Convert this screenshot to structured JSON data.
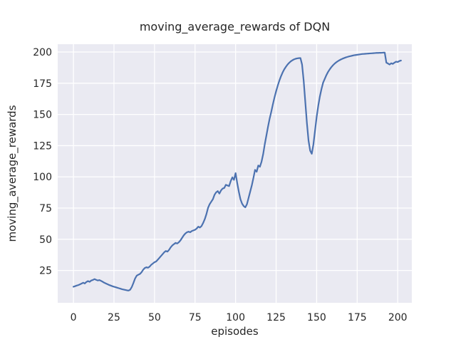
{
  "figure": {
    "title": "moving_average_rewards of DQN",
    "background": "#ffffff"
  },
  "chart_data": {
    "type": "line",
    "title": "moving_average_rewards of DQN",
    "xlabel": "episodes",
    "ylabel": "moving_average_rewards",
    "legend": "none",
    "grid": "on",
    "style": "seaborn-darkgrid",
    "colors": {
      "line": "#4C72B0",
      "plot_background": "#EAEAF2",
      "gridline": "#FFFFFF",
      "text": "#262626"
    },
    "xlim": [
      -9.7,
      208.7
    ],
    "ylim": [
      -0.9,
      206.3
    ],
    "xticks": [
      0,
      25,
      50,
      75,
      100,
      125,
      150,
      175,
      200
    ],
    "yticks": [
      25,
      50,
      75,
      100,
      125,
      150,
      175,
      200
    ],
    "x": [
      0,
      1,
      2,
      3,
      4,
      5,
      6,
      7,
      8,
      9,
      10,
      11,
      12,
      13,
      14,
      15,
      16,
      17,
      18,
      19,
      20,
      21,
      22,
      23,
      24,
      25,
      26,
      27,
      28,
      29,
      30,
      31,
      32,
      33,
      34,
      35,
      36,
      37,
      38,
      39,
      40,
      41,
      42,
      43,
      44,
      45,
      46,
      47,
      48,
      49,
      50,
      51,
      52,
      53,
      54,
      55,
      56,
      57,
      58,
      59,
      60,
      61,
      62,
      63,
      64,
      65,
      66,
      67,
      68,
      69,
      70,
      71,
      72,
      73,
      74,
      75,
      76,
      77,
      78,
      79,
      80,
      81,
      82,
      83,
      84,
      85,
      86,
      87,
      88,
      89,
      90,
      91,
      92,
      93,
      94,
      95,
      96,
      97,
      98,
      99,
      100,
      101,
      102,
      103,
      104,
      105,
      106,
      107,
      108,
      109,
      110,
      111,
      112,
      113,
      114,
      115,
      116,
      117,
      118,
      119,
      120,
      121,
      122,
      123,
      124,
      125,
      126,
      127,
      128,
      129,
      130,
      131,
      132,
      133,
      134,
      135,
      136,
      137,
      138,
      139,
      140,
      141,
      142,
      143,
      144,
      145,
      146,
      147,
      148,
      149,
      150,
      151,
      152,
      153,
      154,
      155,
      156,
      157,
      158,
      159,
      160,
      161,
      162,
      163,
      164,
      165,
      166,
      167,
      168,
      169,
      170,
      171,
      172,
      173,
      174,
      175,
      176,
      177,
      178,
      179,
      180,
      181,
      182,
      183,
      184,
      185,
      186,
      187,
      188,
      189,
      190,
      191,
      192,
      193,
      194,
      195,
      196,
      197,
      198,
      199,
      200,
      201,
      202
    ],
    "y": [
      12.0,
      12.4,
      12.9,
      13.3,
      13.9,
      14.5,
      15.2,
      14.6,
      15.8,
      16.5,
      15.9,
      17.0,
      17.4,
      18.1,
      17.5,
      17.0,
      17.3,
      16.7,
      16.0,
      15.2,
      14.6,
      14.0,
      13.4,
      12.9,
      12.4,
      12.0,
      11.6,
      11.2,
      10.8,
      10.4,
      10.0,
      9.7,
      9.4,
      9.1,
      8.9,
      9.6,
      11.8,
      15.0,
      18.5,
      20.8,
      21.6,
      22.2,
      23.6,
      25.6,
      27.0,
      27.6,
      27.2,
      28.1,
      29.6,
      30.6,
      31.6,
      32.2,
      33.6,
      35.1,
      36.6,
      38.1,
      39.6,
      40.6,
      40.1,
      41.6,
      43.6,
      45.1,
      46.1,
      47.1,
      46.6,
      47.6,
      49.1,
      51.1,
      53.1,
      54.6,
      55.6,
      56.1,
      55.6,
      56.6,
      57.1,
      57.6,
      58.6,
      60.1,
      59.4,
      60.6,
      63.1,
      66.1,
      70.1,
      75.1,
      78.1,
      80.1,
      82.1,
      85.6,
      87.6,
      88.6,
      86.6,
      89.1,
      90.6,
      91.1,
      93.6,
      93.1,
      92.6,
      96.6,
      99.6,
      97.6,
      103.0,
      95.1,
      88.1,
      82.1,
      78.6,
      76.6,
      75.6,
      78.1,
      83.1,
      88.1,
      93.1,
      99.1,
      105.6,
      104.1,
      109.1,
      108.1,
      112.1,
      118.1,
      126.1,
      133.1,
      140.1,
      146.6,
      152.1,
      158.1,
      163.6,
      168.6,
      173.1,
      177.1,
      180.6,
      183.6,
      186.1,
      188.1,
      189.9,
      191.3,
      192.5,
      193.4,
      194.1,
      194.6,
      194.9,
      195.1,
      195.2,
      190.0,
      177.0,
      160.0,
      143.0,
      129.0,
      121.0,
      118.5,
      126.0,
      137.0,
      148.0,
      157.0,
      164.5,
      170.5,
      175.5,
      178.5,
      181.5,
      184.0,
      186.0,
      187.8,
      189.3,
      190.6,
      191.7,
      192.6,
      193.4,
      194.1,
      194.7,
      195.2,
      195.7,
      196.1,
      196.5,
      196.8,
      197.1,
      197.4,
      197.6,
      197.8,
      198.0,
      198.2,
      198.4,
      198.5,
      198.6,
      198.7,
      198.8,
      198.9,
      199.0,
      199.1,
      199.2,
      199.3,
      199.3,
      199.4,
      199.4,
      199.5,
      199.5,
      191.5,
      190.8,
      190.0,
      191.0,
      190.5,
      191.5,
      192.3,
      192.0,
      192.8,
      193.2
    ]
  }
}
